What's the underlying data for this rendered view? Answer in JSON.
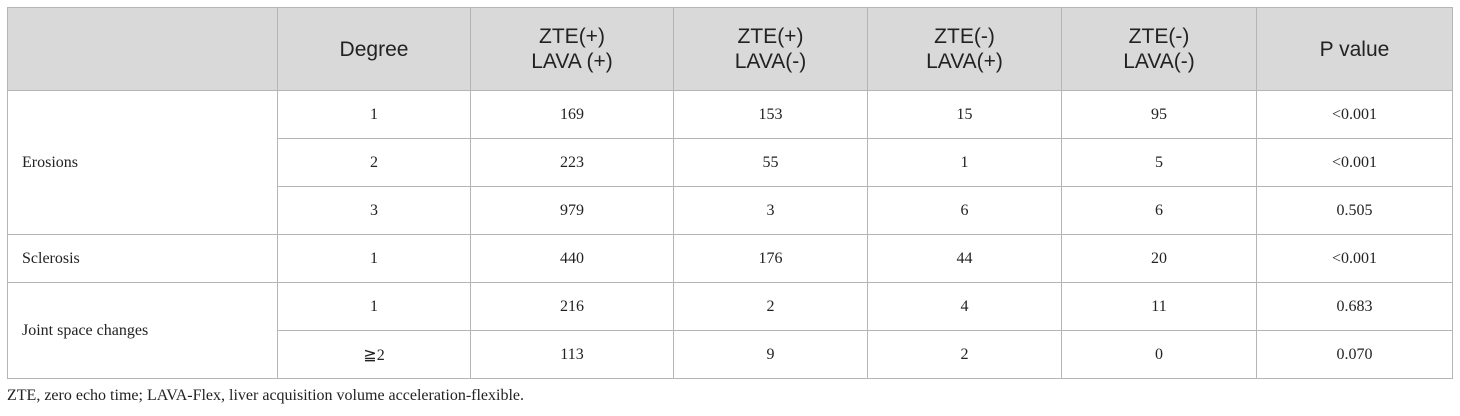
{
  "table": {
    "header": [
      [
        "Degree"
      ],
      [
        "ZTE(+)",
        "LAVA (+)"
      ],
      [
        "ZTE(+)",
        "LAVA(-)"
      ],
      [
        "ZTE(-)",
        "LAVA(+)"
      ],
      [
        "ZTE(-)",
        "LAVA(-)"
      ],
      [
        "P value"
      ]
    ],
    "groups": [
      {
        "label": "Erosions",
        "rows": [
          [
            "1",
            "169",
            "153",
            "15",
            "95",
            "<0.001"
          ],
          [
            "2",
            "223",
            "55",
            "1",
            "5",
            "<0.001"
          ],
          [
            "3",
            "979",
            "3",
            "6",
            "6",
            "0.505"
          ]
        ]
      },
      {
        "label": "Sclerosis",
        "rows": [
          [
            "1",
            "440",
            "176",
            "44",
            "20",
            "<0.001"
          ]
        ]
      },
      {
        "label": "Joint space changes",
        "rows": [
          [
            "1",
            "216",
            "2",
            "4",
            "11",
            "0.683"
          ],
          [
            "≧2",
            "113",
            "9",
            "2",
            "0",
            "0.070"
          ]
        ]
      }
    ]
  },
  "footnote": "ZTE, zero echo time; LAVA-Flex, liver acquisition volume acceleration-flexible."
}
